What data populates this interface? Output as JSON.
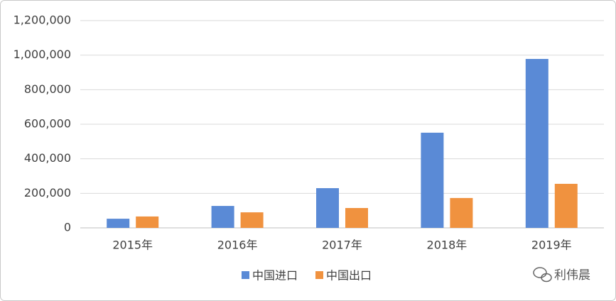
{
  "chart_data": {
    "type": "bar",
    "categories": [
      "2015年",
      "2016年",
      "2017年",
      "2018年",
      "2019年"
    ],
    "series": [
      {
        "name": "中国进口",
        "color": "#5a8ad6",
        "values": [
          53000,
          127000,
          230000,
          551000,
          978000
        ]
      },
      {
        "name": "中国出口",
        "color": "#f0923f",
        "values": [
          66000,
          90000,
          115000,
          173000,
          255000
        ]
      }
    ],
    "ylim": [
      0,
      1200000
    ],
    "yticks": [
      0,
      {
        "value": 200000,
        "label": "200,000"
      },
      {
        "value": 400000,
        "label": "400,000"
      },
      {
        "value": 600000,
        "label": "600,000"
      },
      {
        "value": 800000,
        "label": "800,000"
      },
      {
        "value": 1000000,
        "label": "1,000,000"
      },
      {
        "value": 1200000,
        "label": "1,200,000"
      }
    ],
    "grid": true,
    "legend": "bottom",
    "watermark": "利伟晨"
  }
}
